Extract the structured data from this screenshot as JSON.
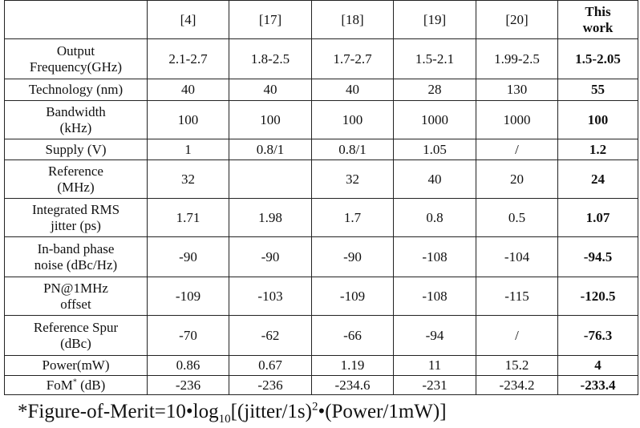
{
  "table": {
    "header": [
      [
        "[4]"
      ],
      [
        "[17]"
      ],
      [
        "[18]"
      ],
      [
        "[19]"
      ],
      [
        "[20]"
      ],
      [
        "This",
        "work"
      ]
    ],
    "rows": [
      {
        "label": [
          "Output",
          "Frequency(GHz)"
        ],
        "cells": [
          "2.1-2.7",
          "1.8-2.5",
          "1.7-2.7",
          "1.5-2.1",
          "1.99-2.5",
          "1.5-2.05"
        ]
      },
      {
        "label": [
          "Technology (nm)"
        ],
        "cells": [
          "40",
          "40",
          "40",
          "28",
          "130",
          "55"
        ]
      },
      {
        "label": [
          "Bandwidth",
          "(kHz)"
        ],
        "cells": [
          "100",
          "100",
          "100",
          "1000",
          "1000",
          "100"
        ]
      },
      {
        "label": [
          "Supply (V)"
        ],
        "cells": [
          "1",
          "0.8/1",
          "0.8/1",
          "1.05",
          "/",
          "1.2"
        ]
      },
      {
        "label": [
          "Reference",
          "(MHz)"
        ],
        "cells": [
          "32",
          null,
          "32",
          "40",
          "20",
          "24"
        ]
      },
      {
        "label": [
          "Integrated RMS",
          "jitter  (ps)"
        ],
        "cells": [
          "1.71",
          "1.98",
          "1.7",
          "0.8",
          "0.5",
          "1.07"
        ]
      },
      {
        "label": [
          "In-band phase",
          "noise (dBc/Hz)"
        ],
        "cells": [
          "-90",
          "-90",
          "-90",
          "-108",
          "-104",
          "-94.5"
        ]
      },
      {
        "label": [
          "PN@1MHz",
          "offset"
        ],
        "cells": [
          "-109",
          "-103",
          "-109",
          "-108",
          "-115",
          "-120.5"
        ]
      },
      {
        "label": [
          "Reference Spur",
          "(dBc)"
        ],
        "cells": [
          "-70",
          "-62",
          "-66",
          "-94",
          "/",
          "-76.3"
        ]
      },
      {
        "label": [
          "Power(mW)"
        ],
        "cells": [
          "0.86",
          "0.67",
          "1.19",
          "11",
          "15.2",
          "4"
        ]
      },
      {
        "label": [
          {
            "base": "FoM",
            "sup": "*",
            "tail": " (dB)"
          }
        ],
        "cells": [
          "-236",
          "-236",
          "-234.6",
          "-231",
          "-234.2",
          "-233.4"
        ]
      }
    ]
  },
  "footnote": {
    "pre": "*Figure-of-Merit=10•log",
    "sub": "10",
    "mid": "[(jitter/1s)",
    "sup": "2",
    "post": "•(Power/1mW)]"
  }
}
